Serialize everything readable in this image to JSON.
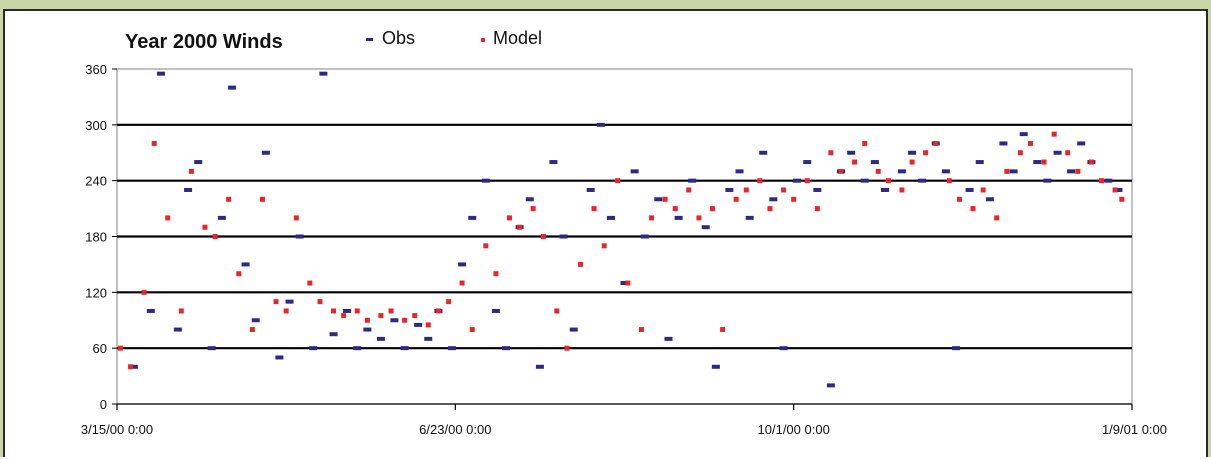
{
  "chart_data": {
    "type": "scatter",
    "title": "Year 2000 Winds",
    "xlabel": "",
    "ylabel": "",
    "ylim": [
      0,
      360
    ],
    "yticks": [
      0,
      60,
      120,
      180,
      240,
      300,
      360
    ],
    "xlim": [
      "2000-03-15T00:00",
      "2001-01-09T00:00"
    ],
    "xtick_labels": [
      "3/15/00 0:00",
      "6/23/00 0:00",
      "10/1/00 0:00",
      "1/9/01 0:00"
    ],
    "grid": "horizontal",
    "legend": "top",
    "series": [
      {
        "name": "Obs",
        "color": "#2b2a84",
        "marker": "dash",
        "points": [
          [
            "2000-03-20",
            40
          ],
          [
            "2000-03-25",
            100
          ],
          [
            "2000-03-28",
            355
          ],
          [
            "2000-04-02",
            80
          ],
          [
            "2000-04-05",
            230
          ],
          [
            "2000-04-08",
            260
          ],
          [
            "2000-04-12",
            60
          ],
          [
            "2000-04-15",
            200
          ],
          [
            "2000-04-18",
            340
          ],
          [
            "2000-04-22",
            150
          ],
          [
            "2000-04-25",
            90
          ],
          [
            "2000-04-28",
            270
          ],
          [
            "2000-05-02",
            50
          ],
          [
            "2000-05-05",
            110
          ],
          [
            "2000-05-08",
            180
          ],
          [
            "2000-05-12",
            60
          ],
          [
            "2000-05-15",
            355
          ],
          [
            "2000-05-18",
            75
          ],
          [
            "2000-05-22",
            100
          ],
          [
            "2000-05-25",
            60
          ],
          [
            "2000-05-28",
            80
          ],
          [
            "2000-06-01",
            70
          ],
          [
            "2000-06-05",
            90
          ],
          [
            "2000-06-08",
            60
          ],
          [
            "2000-06-12",
            85
          ],
          [
            "2000-06-15",
            70
          ],
          [
            "2000-06-18",
            100
          ],
          [
            "2000-06-22",
            60
          ],
          [
            "2000-06-25",
            150
          ],
          [
            "2000-06-28",
            200
          ],
          [
            "2000-07-02",
            240
          ],
          [
            "2000-07-05",
            100
          ],
          [
            "2000-07-08",
            60
          ],
          [
            "2000-07-12",
            190
          ],
          [
            "2000-07-15",
            220
          ],
          [
            "2000-07-18",
            40
          ],
          [
            "2000-07-22",
            260
          ],
          [
            "2000-07-25",
            180
          ],
          [
            "2000-07-28",
            80
          ],
          [
            "2000-08-02",
            230
          ],
          [
            "2000-08-05",
            300
          ],
          [
            "2000-08-08",
            200
          ],
          [
            "2000-08-12",
            130
          ],
          [
            "2000-08-15",
            250
          ],
          [
            "2000-08-18",
            180
          ],
          [
            "2000-08-22",
            220
          ],
          [
            "2000-08-25",
            70
          ],
          [
            "2000-08-28",
            200
          ],
          [
            "2000-09-01",
            240
          ],
          [
            "2000-09-05",
            190
          ],
          [
            "2000-09-08",
            40
          ],
          [
            "2000-09-12",
            230
          ],
          [
            "2000-09-15",
            250
          ],
          [
            "2000-09-18",
            200
          ],
          [
            "2000-09-22",
            270
          ],
          [
            "2000-09-25",
            220
          ],
          [
            "2000-09-28",
            60
          ],
          [
            "2000-10-02",
            240
          ],
          [
            "2000-10-05",
            260
          ],
          [
            "2000-10-08",
            230
          ],
          [
            "2000-10-12",
            20
          ],
          [
            "2000-10-15",
            250
          ],
          [
            "2000-10-18",
            270
          ],
          [
            "2000-10-22",
            240
          ],
          [
            "2000-10-25",
            260
          ],
          [
            "2000-10-28",
            230
          ],
          [
            "2000-11-02",
            250
          ],
          [
            "2000-11-05",
            270
          ],
          [
            "2000-11-08",
            240
          ],
          [
            "2000-11-12",
            280
          ],
          [
            "2000-11-15",
            250
          ],
          [
            "2000-11-18",
            60
          ],
          [
            "2000-11-22",
            230
          ],
          [
            "2000-11-25",
            260
          ],
          [
            "2000-11-28",
            220
          ],
          [
            "2000-12-02",
            280
          ],
          [
            "2000-12-05",
            250
          ],
          [
            "2000-12-08",
            290
          ],
          [
            "2000-12-12",
            260
          ],
          [
            "2000-12-15",
            240
          ],
          [
            "2000-12-18",
            270
          ],
          [
            "2000-12-22",
            250
          ],
          [
            "2000-12-25",
            280
          ],
          [
            "2000-12-28",
            260
          ],
          [
            "2001-01-02",
            240
          ],
          [
            "2001-01-05",
            230
          ]
        ]
      },
      {
        "name": "Model",
        "color": "#e8262a",
        "marker": "dot",
        "points": [
          [
            "2000-03-16",
            60
          ],
          [
            "2000-03-19",
            40
          ],
          [
            "2000-03-23",
            120
          ],
          [
            "2000-03-26",
            280
          ],
          [
            "2000-03-30",
            200
          ],
          [
            "2000-04-03",
            100
          ],
          [
            "2000-04-06",
            250
          ],
          [
            "2000-04-10",
            190
          ],
          [
            "2000-04-13",
            180
          ],
          [
            "2000-04-17",
            220
          ],
          [
            "2000-04-20",
            140
          ],
          [
            "2000-04-24",
            80
          ],
          [
            "2000-04-27",
            220
          ],
          [
            "2000-05-01",
            110
          ],
          [
            "2000-05-04",
            100
          ],
          [
            "2000-05-07",
            200
          ],
          [
            "2000-05-11",
            130
          ],
          [
            "2000-05-14",
            110
          ],
          [
            "2000-05-18",
            100
          ],
          [
            "2000-05-21",
            95
          ],
          [
            "2000-05-25",
            100
          ],
          [
            "2000-05-28",
            90
          ],
          [
            "2000-06-01",
            95
          ],
          [
            "2000-06-04",
            100
          ],
          [
            "2000-06-08",
            90
          ],
          [
            "2000-06-11",
            95
          ],
          [
            "2000-06-15",
            85
          ],
          [
            "2000-06-18",
            100
          ],
          [
            "2000-06-21",
            110
          ],
          [
            "2000-06-25",
            130
          ],
          [
            "2000-06-28",
            80
          ],
          [
            "2000-07-02",
            170
          ],
          [
            "2000-07-05",
            140
          ],
          [
            "2000-07-09",
            200
          ],
          [
            "2000-07-12",
            190
          ],
          [
            "2000-07-16",
            210
          ],
          [
            "2000-07-19",
            180
          ],
          [
            "2000-07-23",
            100
          ],
          [
            "2000-07-26",
            60
          ],
          [
            "2000-07-30",
            150
          ],
          [
            "2000-08-03",
            210
          ],
          [
            "2000-08-06",
            170
          ],
          [
            "2000-08-10",
            240
          ],
          [
            "2000-08-13",
            130
          ],
          [
            "2000-08-17",
            80
          ],
          [
            "2000-08-20",
            200
          ],
          [
            "2000-08-24",
            220
          ],
          [
            "2000-08-27",
            210
          ],
          [
            "2000-08-31",
            230
          ],
          [
            "2000-09-03",
            200
          ],
          [
            "2000-09-07",
            210
          ],
          [
            "2000-09-10",
            80
          ],
          [
            "2000-09-14",
            220
          ],
          [
            "2000-09-17",
            230
          ],
          [
            "2000-09-21",
            240
          ],
          [
            "2000-09-24",
            210
          ],
          [
            "2000-09-28",
            230
          ],
          [
            "2000-10-01",
            220
          ],
          [
            "2000-10-05",
            240
          ],
          [
            "2000-10-08",
            210
          ],
          [
            "2000-10-12",
            270
          ],
          [
            "2000-10-15",
            250
          ],
          [
            "2000-10-19",
            260
          ],
          [
            "2000-10-22",
            280
          ],
          [
            "2000-10-26",
            250
          ],
          [
            "2000-10-29",
            240
          ],
          [
            "2000-11-02",
            230
          ],
          [
            "2000-11-05",
            260
          ],
          [
            "2000-11-09",
            270
          ],
          [
            "2000-11-12",
            280
          ],
          [
            "2000-11-16",
            240
          ],
          [
            "2000-11-19",
            220
          ],
          [
            "2000-11-23",
            210
          ],
          [
            "2000-11-26",
            230
          ],
          [
            "2000-11-30",
            200
          ],
          [
            "2000-12-03",
            250
          ],
          [
            "2000-12-07",
            270
          ],
          [
            "2000-12-10",
            280
          ],
          [
            "2000-12-14",
            260
          ],
          [
            "2000-12-17",
            290
          ],
          [
            "2000-12-21",
            270
          ],
          [
            "2000-12-24",
            250
          ],
          [
            "2000-12-28",
            260
          ],
          [
            "2000-12-31",
            240
          ],
          [
            "2001-01-04",
            230
          ],
          [
            "2001-01-06",
            220
          ]
        ]
      }
    ]
  }
}
